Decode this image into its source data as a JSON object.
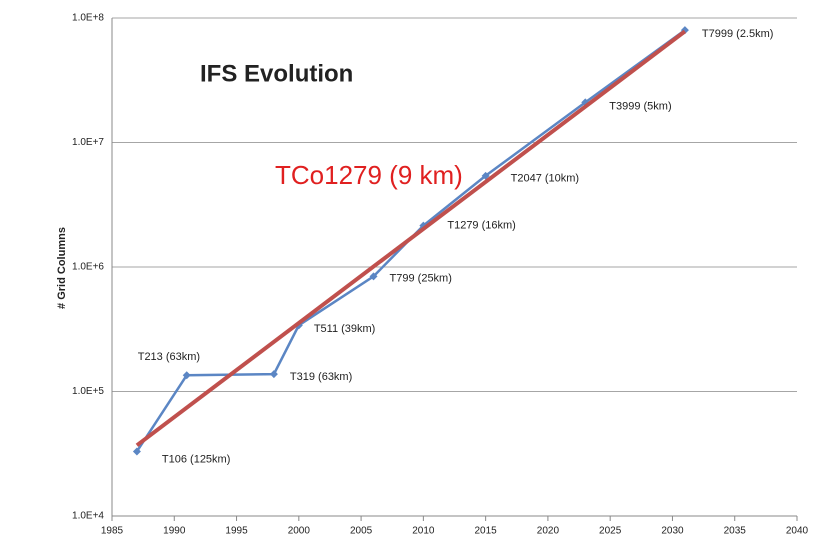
{
  "chart_data": {
    "type": "line",
    "title": "IFS Evolution",
    "annotation": "TCo1279 (9 km)",
    "ylabel": "# Grid Columns",
    "log_y": true,
    "grid": true,
    "xlim": [
      1985,
      2040
    ],
    "xticks": [
      1985,
      1990,
      1995,
      2000,
      2005,
      2010,
      2015,
      2020,
      2025,
      2030,
      2035,
      2040
    ],
    "ylim": [
      10000,
      100000000
    ],
    "yticks": [
      {
        "value": 10000,
        "label": "1.0E+4"
      },
      {
        "value": 100000,
        "label": "1.0E+5"
      },
      {
        "value": 1000000,
        "label": "1.0E+6"
      },
      {
        "value": 10000000,
        "label": "1.0E+7"
      },
      {
        "value": 100000000,
        "label": "1.0E+8"
      }
    ],
    "series": [
      {
        "color": "#5b86c4",
        "x": [
          1987,
          1991,
          1998,
          2000,
          2006,
          2010,
          2015,
          2023,
          2031
        ],
        "values": [
          33000,
          135000,
          138000,
          340000,
          840000,
          2150000,
          5400000,
          21000000,
          80000000
        ],
        "point_labels": [
          "T106 (125km)",
          "T213 (63km)",
          "T319 (63km)",
          "T511 (39km)",
          "T799 (25km)",
          "T1279 (16km)",
          "T2047 (10km)",
          "T3999 (5km)",
          "T7999 (2.5km)"
        ]
      },
      {
        "color": "#c0504d",
        "x": [
          1987,
          2031
        ],
        "values": [
          37000,
          78000000
        ]
      }
    ]
  }
}
